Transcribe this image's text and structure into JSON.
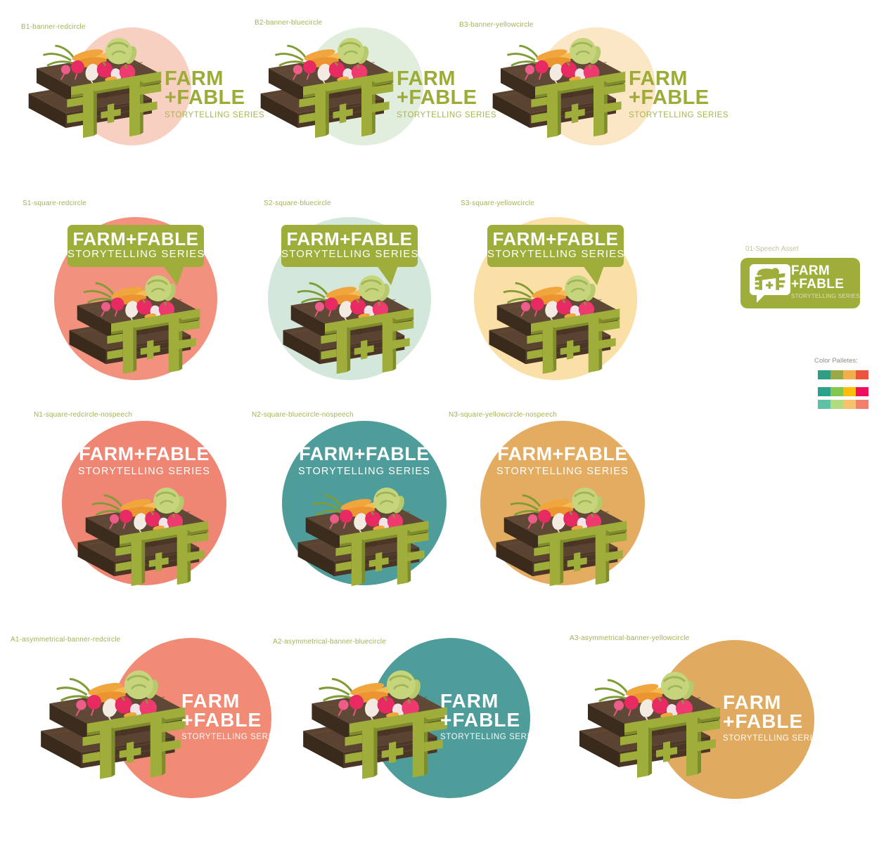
{
  "brand": {
    "line1": "FARM",
    "line2": "+FABLE",
    "combined": "FARM+FABLE",
    "tagline": "STORYTELLING SERIES"
  },
  "variants": [
    {
      "id": "B1",
      "label": "B1-banner-redcircle",
      "type": "banner",
      "circle_color": "#f8d0c1"
    },
    {
      "id": "B2",
      "label": "B2-banner-bluecircle",
      "type": "banner",
      "circle_color": "#e2eedd"
    },
    {
      "id": "B3",
      "label": "B3-banner-yellowcircle",
      "type": "banner",
      "circle_color": "#fbe7c5"
    },
    {
      "id": "S1",
      "label": "S1-square-redcircle",
      "type": "square",
      "circle_color": "#f2917d"
    },
    {
      "id": "S2",
      "label": "S2-square-bluecircle",
      "type": "square",
      "circle_color": "#d3e7da"
    },
    {
      "id": "S3",
      "label": "S3-square-yellowcircle",
      "type": "square",
      "circle_color": "#fadfa7"
    },
    {
      "id": "N1",
      "label": "N1-square-redcircle-nospeech",
      "type": "nospeech",
      "circle_color": "#ee8673"
    },
    {
      "id": "N2",
      "label": "N2-square-bluecircle-nospeech",
      "type": "nospeech",
      "circle_color": "#4f9d9a"
    },
    {
      "id": "N3",
      "label": "N3-square-yellowcircle-nospeech",
      "type": "nospeech",
      "circle_color": "#e3ac61"
    },
    {
      "id": "A1",
      "label": "A1-asymmetrical-banner-redcircle",
      "type": "asym",
      "circle_color": "#f18b76"
    },
    {
      "id": "A2",
      "label": "A2-asymmetrical-banner-bluecircle",
      "type": "asym",
      "circle_color": "#4f9d9a"
    },
    {
      "id": "A3",
      "label": "A3-asymmetrical-banner-yellowcircle",
      "type": "asym",
      "circle_color": "#e0aa61"
    }
  ],
  "speech_asset": {
    "label": "01-Speech Asset"
  },
  "palettes": {
    "label": "Color Palletes:",
    "rows": [
      [
        "#2f9e84",
        "#9aa944",
        "#f3ad4b",
        "#ef5340"
      ],
      [
        "#2aa28b",
        "#82c84f",
        "#fbbd09",
        "#ef0f5e"
      ],
      [
        "#5ec0a4",
        "#b0db7f",
        "#f8c16c",
        "#f3806f"
      ]
    ]
  },
  "colors": {
    "olive": "#9fae3a",
    "olive_text": "#9dac37",
    "olive_tag": "#a9b54f",
    "label_text": "#a8b155",
    "wood_dark": "#4c3727",
    "white": "#ffffff"
  }
}
